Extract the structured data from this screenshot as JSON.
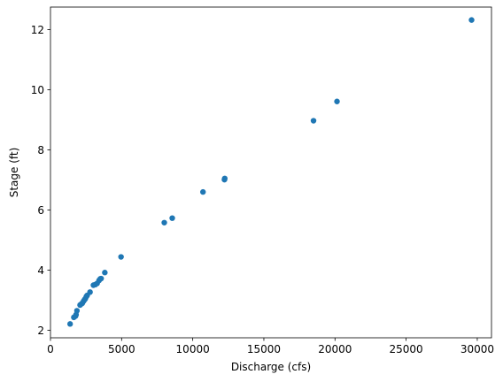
{
  "chart_data": {
    "type": "scatter",
    "title": "",
    "xlabel": "Discharge (cfs)",
    "ylabel": "Stage (ft)",
    "xlim": [
      0,
      31000
    ],
    "ylim": [
      1.75,
      12.75
    ],
    "xticks": [
      0,
      5000,
      10000,
      15000,
      20000,
      25000,
      30000
    ],
    "xtick_labels": [
      "0",
      "5000",
      "10000",
      "15000",
      "20000",
      "25000",
      "30000"
    ],
    "yticks": [
      2,
      4,
      6,
      8,
      10,
      12
    ],
    "ytick_labels": [
      "2",
      "4",
      "6",
      "8",
      "10",
      "12"
    ],
    "grid": false,
    "legend": "none",
    "marker_color": "#1f77b4",
    "points": [
      [
        1380,
        2.21
      ],
      [
        1640,
        2.43
      ],
      [
        1760,
        2.47
      ],
      [
        1800,
        2.52
      ],
      [
        1860,
        2.65
      ],
      [
        2080,
        2.84
      ],
      [
        2180,
        2.88
      ],
      [
        2240,
        2.9
      ],
      [
        2330,
        2.97
      ],
      [
        2400,
        3.02
      ],
      [
        2450,
        3.05
      ],
      [
        2520,
        3.12
      ],
      [
        2580,
        3.16
      ],
      [
        2780,
        3.27
      ],
      [
        3020,
        3.5
      ],
      [
        3150,
        3.52
      ],
      [
        3280,
        3.56
      ],
      [
        3420,
        3.66
      ],
      [
        3500,
        3.71
      ],
      [
        3560,
        3.72
      ],
      [
        3820,
        3.92
      ],
      [
        4960,
        4.44
      ],
      [
        8000,
        5.58
      ],
      [
        8560,
        5.73
      ],
      [
        10720,
        6.6
      ],
      [
        12230,
        7.01
      ],
      [
        12250,
        7.05
      ],
      [
        18490,
        8.97
      ],
      [
        20140,
        9.61
      ],
      [
        29600,
        12.32
      ]
    ]
  }
}
